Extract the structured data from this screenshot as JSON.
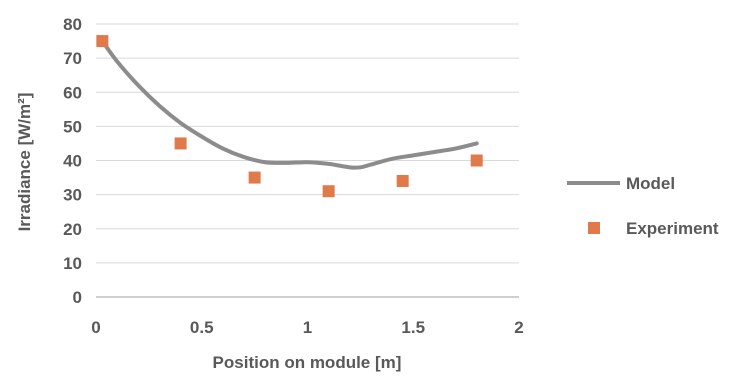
{
  "chart_data": {
    "type": "line",
    "xlabel": "Position on module [m]",
    "ylabel": "Irradiance [W/m²]",
    "xlim": [
      0,
      2
    ],
    "ylim": [
      0,
      80
    ],
    "x_ticks": [
      0,
      0.5,
      1,
      1.5,
      2
    ],
    "x_tick_labels": [
      "0",
      "0.5",
      "1",
      "1.5",
      "2"
    ],
    "y_ticks": [
      0,
      10,
      20,
      30,
      40,
      50,
      60,
      70,
      80
    ],
    "y_tick_labels": [
      "0",
      "10",
      "20",
      "30",
      "40",
      "50",
      "60",
      "70",
      "80"
    ],
    "grid": "horizontal",
    "legend_position": "right",
    "series": [
      {
        "name": "Model",
        "type": "line",
        "color": "#8c8c8c",
        "x": [
          0.03,
          0.1,
          0.2,
          0.3,
          0.4,
          0.5,
          0.6,
          0.7,
          0.8,
          0.9,
          1.0,
          1.1,
          1.2,
          1.25,
          1.3,
          1.4,
          1.5,
          1.6,
          1.7,
          1.8
        ],
        "y": [
          75,
          69,
          62,
          56,
          51,
          47,
          43.5,
          41,
          39.5,
          39.3,
          39.5,
          39,
          38,
          38,
          38.8,
          40.5,
          41.5,
          42.5,
          43.5,
          45
        ]
      },
      {
        "name": "Experiment",
        "type": "scatter",
        "color": "#e07a4b",
        "x": [
          0.03,
          0.4,
          0.75,
          1.1,
          1.45,
          1.8
        ],
        "y": [
          75,
          45,
          35,
          31,
          34,
          40
        ]
      }
    ]
  }
}
